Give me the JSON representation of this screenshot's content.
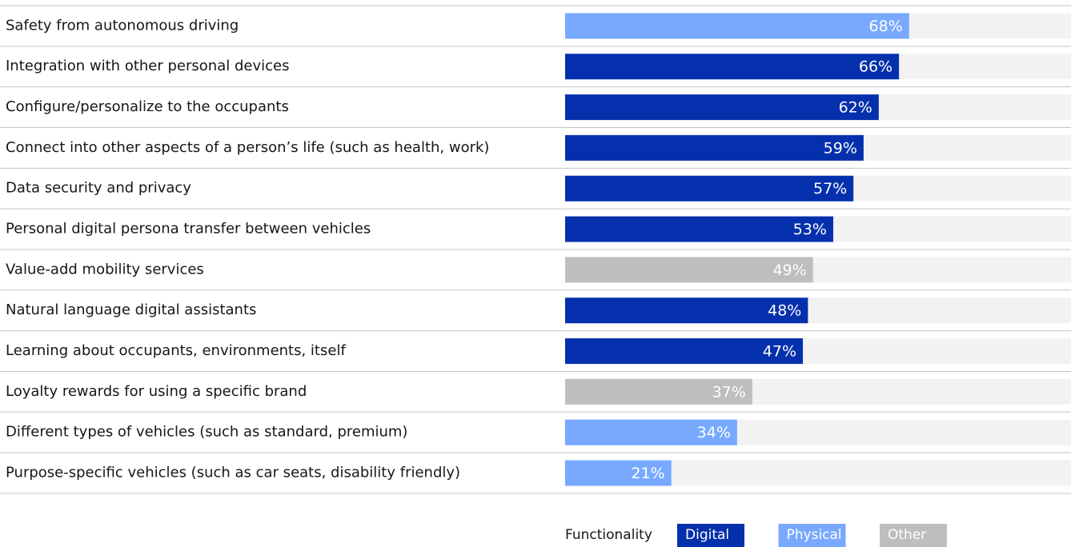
{
  "chart_data": {
    "type": "bar",
    "orientation": "horizontal",
    "categories": [
      "Safety from autonomous driving",
      "Integration with other personal devices",
      "Configure/personalize to the occupants",
      "Connect into other aspects of a person’s life (such as health, work)",
      "Data security and privacy",
      "Personal digital persona transfer between vehicles",
      "Value-add mobility services",
      "Natural language digital assistants",
      "Learning about occupants, environments, itself",
      "Loyalty rewards for using a specific brand",
      "Different types of vehicles (such as standard, premium)",
      "Purpose-specific vehicles (such as car seats, disability friendly)"
    ],
    "values": [
      68,
      66,
      62,
      59,
      57,
      53,
      49,
      48,
      47,
      37,
      34,
      21
    ],
    "value_labels": [
      "68%",
      "66%",
      "62%",
      "59%",
      "57%",
      "53%",
      "49%",
      "48%",
      "47%",
      "37%",
      "34%",
      "21%"
    ],
    "colors": [
      "#78a9ff",
      "#0530ad",
      "#0530ad",
      "#0530ad",
      "#0530ad",
      "#0530ad",
      "#bebebe",
      "#0530ad",
      "#0530ad",
      "#bebebe",
      "#78a9ff",
      "#78a9ff"
    ],
    "xlim": [
      0,
      100
    ],
    "legend": {
      "title": "Functionality",
      "items": [
        {
          "name": "Digital",
          "color": "#0530ad"
        },
        {
          "name": "Physical",
          "color": "#78a9ff"
        },
        {
          "name": "Other",
          "color": "#bebebe"
        }
      ]
    }
  }
}
